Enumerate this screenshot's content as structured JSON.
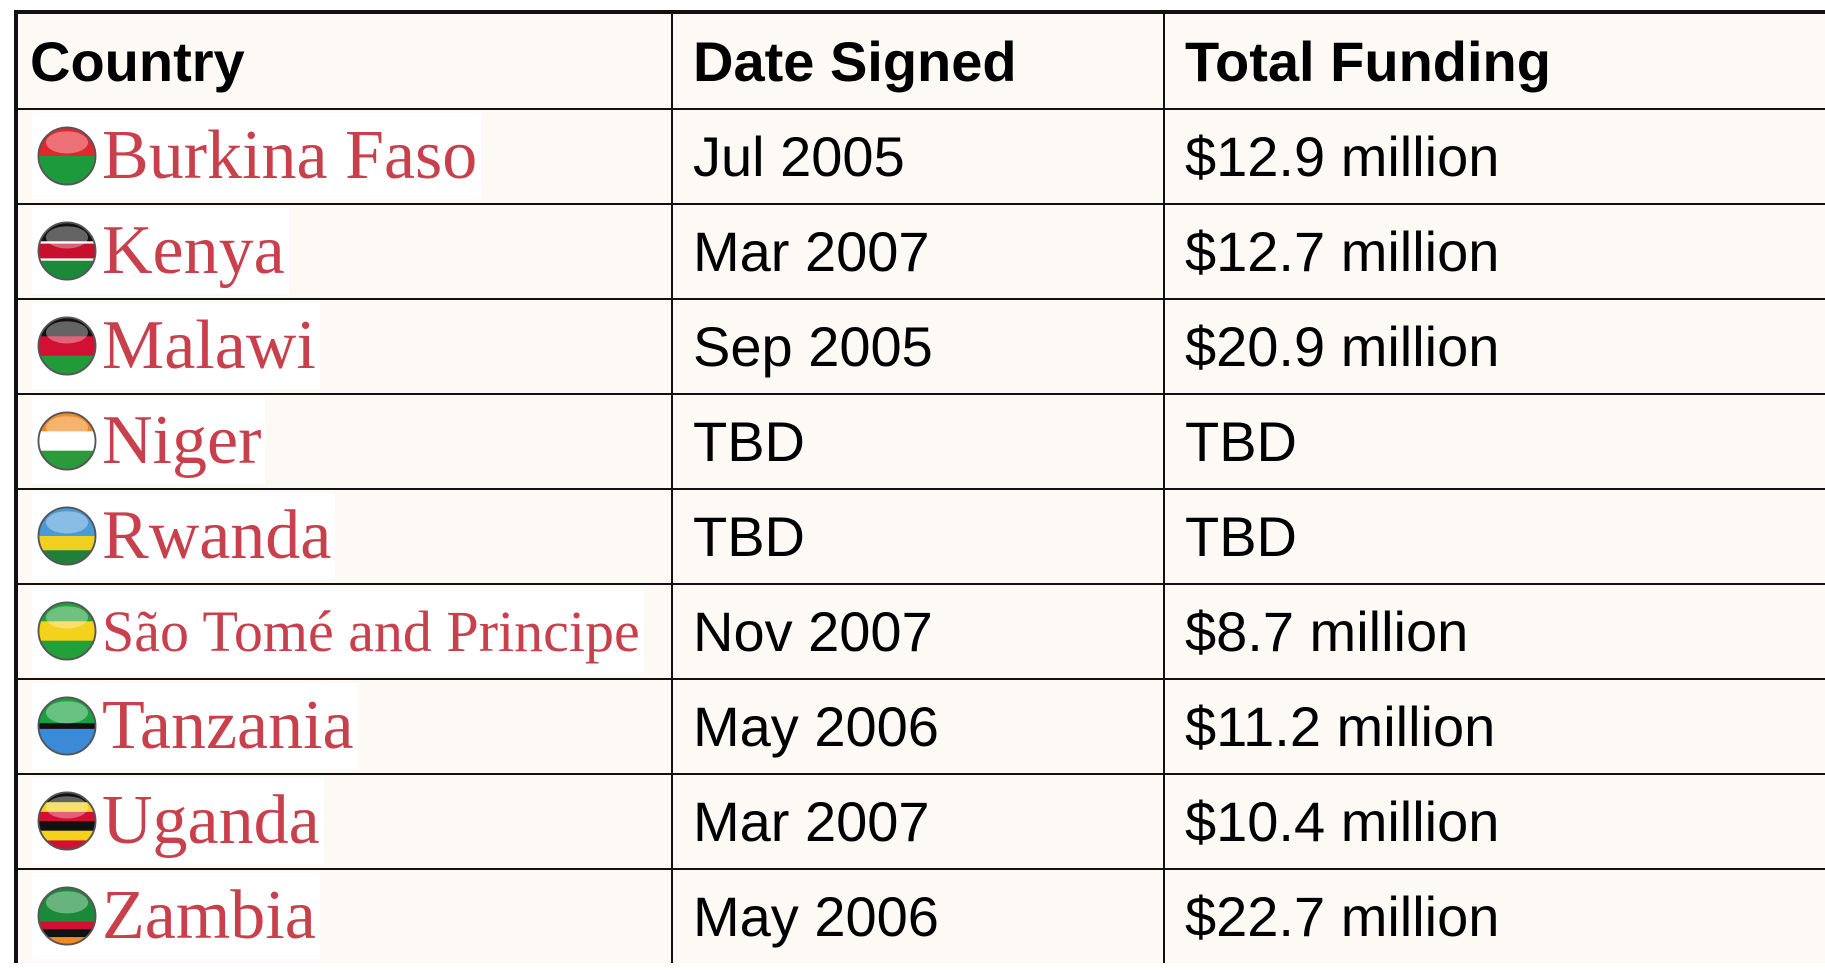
{
  "table": {
    "header": [
      "Country",
      "Date Signed",
      "Total Funding"
    ],
    "rows": [
      [
        "Burkina Faso",
        "Jul 2005",
        "$12.9 million"
      ],
      [
        "Kenya",
        "Mar 2007",
        "$12.7 million"
      ],
      [
        "Malawi",
        "Sep 2005",
        "$20.9 million"
      ],
      [
        "Niger",
        "TBD",
        "TBD"
      ],
      [
        "Rwanda",
        "TBD",
        "TBD"
      ],
      [
        "São Tomé and Principe",
        "Nov 2007",
        "$8.7 million"
      ],
      [
        "Tanzania",
        "May 2006",
        "$11.2 million"
      ],
      [
        "Uganda",
        "Mar 2007",
        "$10.4 million"
      ],
      [
        "Zambia",
        "May 2006",
        "$22.7 million"
      ]
    ]
  }
}
